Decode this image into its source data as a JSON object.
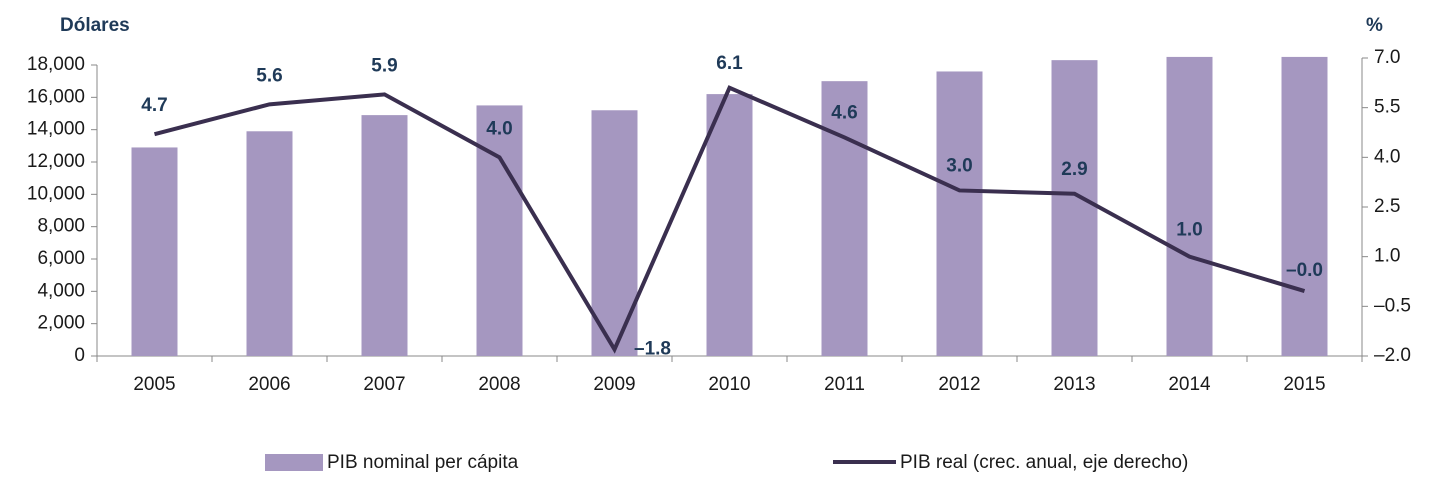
{
  "chart_data": {
    "type": "bar_line",
    "y_axis_label": "Dólares",
    "y2_axis_label": "%",
    "categories": [
      "2005",
      "2006",
      "2007",
      "2008",
      "2009",
      "2010",
      "2011",
      "2012",
      "2013",
      "2014",
      "2015"
    ],
    "series": [
      {
        "name": "PIB nominal per cápita",
        "color": "#a597c0",
        "type": "bar",
        "values": [
          12900,
          13900,
          14900,
          15500,
          15200,
          16200,
          17000,
          17600,
          18300,
          18500,
          18500
        ]
      },
      {
        "name": "PIB real (crec. anual, eje derecho)",
        "color": "#3a2f4f",
        "type": "line",
        "axis": "y2",
        "values": [
          4.7,
          5.6,
          5.9,
          4.0,
          -1.8,
          6.1,
          4.6,
          3.0,
          2.9,
          1.0,
          -0.04
        ],
        "value_labels": [
          "4.7",
          "5.6",
          "5.9",
          "4.0",
          "–1.8",
          "6.1",
          "4.6",
          "3.0",
          "2.9",
          "1.0",
          "–0.0"
        ]
      }
    ],
    "ylim": [
      0,
      18000
    ],
    "yticks": [
      0,
      {
        "value": 2000,
        "label": "2,000"
      },
      {
        "value": 4000,
        "label": "4,000"
      },
      {
        "value": 6000,
        "label": "6,000"
      },
      {
        "value": 8000,
        "label": "8,000"
      },
      {
        "value": 10000,
        "label": "10,000"
      },
      {
        "value": 12000,
        "label": "12,000"
      },
      {
        "value": 14000,
        "label": "14,000"
      },
      {
        "value": 16000,
        "label": "16,000"
      },
      {
        "value": 18000,
        "label": "18,000"
      }
    ],
    "y2lim": [
      -2,
      7
    ],
    "y2ticks": [
      {
        "value": -2,
        "label": "–2.0"
      },
      {
        "value": -0.5,
        "label": "–0.5"
      },
      {
        "value": 1,
        "label": "1.0"
      },
      {
        "value": 2.5,
        "label": "2.5"
      },
      {
        "value": 4,
        "label": "4.0"
      },
      {
        "value": 5.5,
        "label": "5.5"
      },
      {
        "value": 7,
        "label": "7.0"
      }
    ],
    "legend": "bottom"
  }
}
